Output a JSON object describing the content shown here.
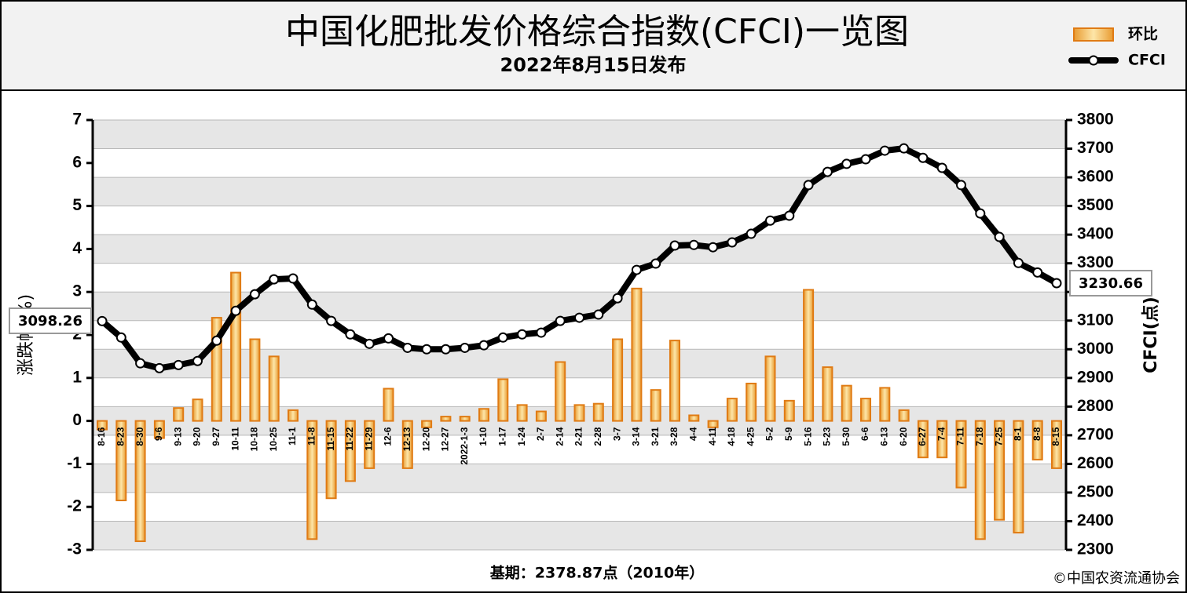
{
  "chart_data": {
    "type": "bar-line",
    "title": "中国化肥批发价格综合指数(CFCI)一览图",
    "subtitle": "2022年8月15日发布",
    "y_label": "涨跌幅(%)",
    "y2_label": "CFCI(点)",
    "footnote": "基期：2378.87点（2010年）",
    "copyright": "©中国农资流通协会",
    "categories": [
      "8-16",
      "8-23",
      "8-30",
      "9-6",
      "9-13",
      "9-20",
      "9-27",
      "10-11",
      "10-18",
      "10-25",
      "11-1",
      "11-8",
      "11-15",
      "11-22",
      "11-29",
      "12-6",
      "12-13",
      "12-20",
      "12-27",
      "2022-1-3",
      "1-10",
      "1-17",
      "1-24",
      "2-7",
      "2-14",
      "2-21",
      "2-28",
      "3-7",
      "3-14",
      "3-21",
      "3-28",
      "4-4",
      "4-11",
      "4-18",
      "4-25",
      "5-2",
      "5-9",
      "5-16",
      "5-23",
      "5-30",
      "6-6",
      "6-13",
      "6-20",
      "6-27",
      "7-4",
      "7-11",
      "7-18",
      "7-25",
      "8-1",
      "8-8",
      "8-15"
    ],
    "series": [
      {
        "name": "环比",
        "color": "#f0a030",
        "type": "bar",
        "values": [
          -0.2,
          -1.85,
          -2.8,
          -0.4,
          0.3,
          0.5,
          2.4,
          3.45,
          1.9,
          1.5,
          0.25,
          -2.75,
          -1.8,
          -1.4,
          -1.1,
          0.75,
          -1.1,
          -0.15,
          0.1,
          0.1,
          0.28,
          0.97,
          0.37,
          0.22,
          1.37,
          0.37,
          0.4,
          1.9,
          3.08,
          0.72,
          1.87,
          0.13,
          -0.15,
          0.52,
          0.87,
          1.5,
          0.47,
          3.05,
          1.25,
          0.82,
          0.52,
          0.77,
          0.25,
          -0.85,
          -0.85,
          -1.55,
          -2.75,
          -2.3,
          -2.6,
          -0.9,
          -1.1
        ]
      },
      {
        "name": "CFCI",
        "color": "#000000",
        "type": "line",
        "axis": "y2",
        "values": [
          3098.26,
          3041,
          2951,
          2934,
          2945,
          2959,
          3030,
          3134,
          3192,
          3244,
          3247,
          3156,
          3099,
          3052,
          3019,
          3038,
          3005,
          3000,
          3000,
          3005,
          3014,
          3041,
          3052,
          3058,
          3099,
          3110,
          3121,
          3178,
          3277,
          3299,
          3362,
          3364,
          3356,
          3373,
          3403,
          3449,
          3466,
          3573,
          3619,
          3647,
          3663,
          3693,
          3701,
          3668,
          3633,
          3573,
          3474,
          3392,
          3301,
          3268,
          3230.66
        ]
      }
    ],
    "ylim": [
      -3,
      7
    ],
    "yticks": [
      -3,
      -2,
      -1,
      0,
      1,
      2,
      3,
      4,
      5,
      6,
      7
    ],
    "y2lim": [
      2300,
      3800
    ],
    "y2ticks": [
      2300,
      2400,
      2500,
      2600,
      2700,
      2800,
      2900,
      3000,
      3100,
      3200,
      3300,
      3400,
      3500,
      3600,
      3700,
      3800
    ],
    "grid": true
  }
}
